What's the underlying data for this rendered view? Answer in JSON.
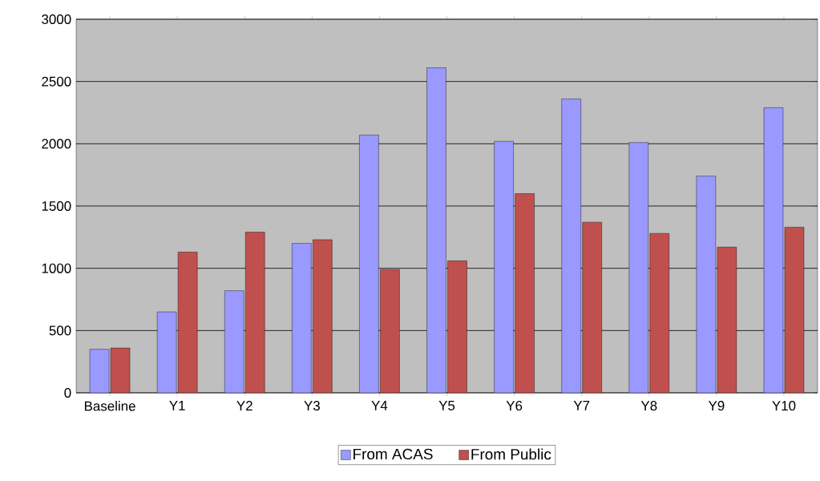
{
  "chart_data": {
    "type": "bar",
    "categories": [
      "Baseline",
      "Y1",
      "Y2",
      "Y3",
      "Y4",
      "Y5",
      "Y6",
      "Y7",
      "Y8",
      "Y9",
      "Y10"
    ],
    "series": [
      {
        "name": "From ACAS",
        "color": "#9999ff",
        "values": [
          350,
          650,
          820,
          1200,
          2070,
          2610,
          2020,
          2360,
          2010,
          1740,
          2290
        ]
      },
      {
        "name": "From Public",
        "color": "#c0504d",
        "values": [
          360,
          1130,
          1290,
          1230,
          990,
          1060,
          1600,
          1370,
          1280,
          1170,
          1330
        ]
      }
    ],
    "ylim": [
      0,
      3000
    ],
    "yticks": [
      0,
      500,
      1000,
      1500,
      2000,
      2500,
      3000
    ],
    "grid": "y",
    "legend": "bottom"
  }
}
